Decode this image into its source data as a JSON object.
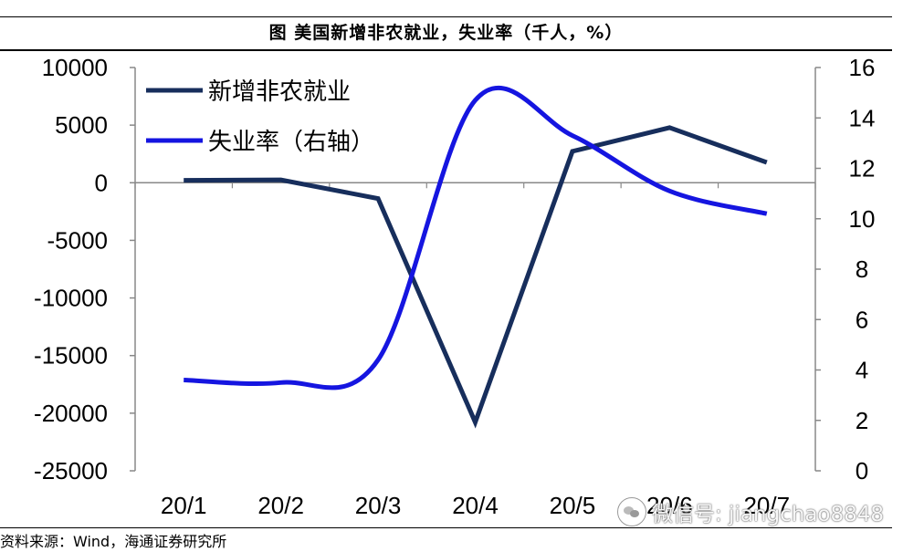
{
  "figure": {
    "title": "图  美国新增非农就业，失业率（千人，%）",
    "source": "资料来源：Wind，海通证券研究所"
  },
  "watermark": {
    "text": "微信号: jiangchao8848"
  },
  "chart_data": {
    "type": "line",
    "categories": [
      "20/1",
      "20/2",
      "20/3",
      "20/4",
      "20/5",
      "20/6",
      "20/7"
    ],
    "left_axis": {
      "ylim": [
        -25000,
        10000
      ],
      "ticks": [
        10000,
        5000,
        0,
        -5000,
        -10000,
        -15000,
        -20000,
        -25000
      ]
    },
    "right_axis": {
      "ylim": [
        0,
        16
      ],
      "ticks": [
        16,
        14,
        12,
        10,
        8,
        6,
        4,
        2,
        0
      ]
    },
    "series": [
      {
        "name": "新增非农就业",
        "axis": "left",
        "color": "#172e5c",
        "values": [
          214,
          251,
          -1373,
          -20787,
          2725,
          4781,
          1763
        ]
      },
      {
        "name": "失业率（右轴）",
        "axis": "right",
        "color": "#1515e0",
        "values": [
          3.6,
          3.5,
          4.4,
          14.7,
          13.3,
          11.1,
          10.2
        ]
      }
    ],
    "legend_position": "top-left",
    "grid": false
  }
}
